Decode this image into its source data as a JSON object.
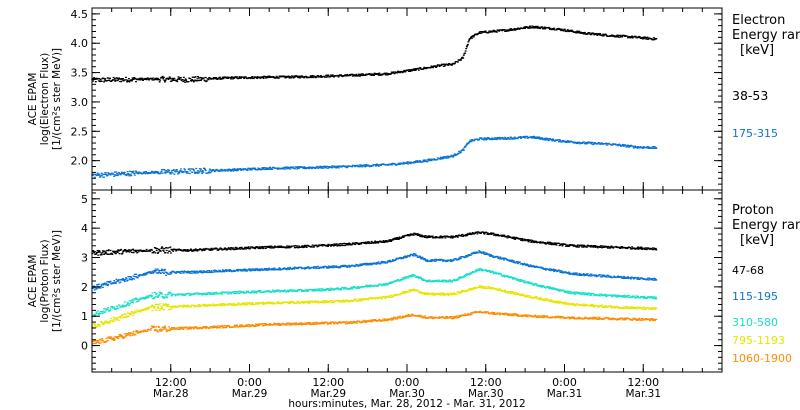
{
  "chart_data": {
    "type": "scatter",
    "x_axis": {
      "title": "hours:minutes, Mar. 28, 2012 - Mar. 31, 2012",
      "range_hours": [
        -15,
        81
      ],
      "ticks": [
        {
          "hour": -3,
          "time": "12:00",
          "date": "Mar.28"
        },
        {
          "hour": 9,
          "time": "0:00",
          "date": "Mar.29"
        },
        {
          "hour": 21,
          "time": "12:00",
          "date": "Mar.29"
        },
        {
          "hour": 33,
          "time": "0:00",
          "date": "Mar.30"
        },
        {
          "hour": 45,
          "time": "12:00",
          "date": "Mar.30"
        },
        {
          "hour": 57,
          "time": "0:00",
          "date": "Mar.31"
        },
        {
          "hour": 69,
          "time": "12:00",
          "date": "Mar.31"
        }
      ]
    },
    "panels": [
      {
        "ylabel": [
          "ACE EPAM",
          "log(Electron Flux)",
          "[1/(cm²s ster MeV)]"
        ],
        "ylim": [
          1.5,
          4.6
        ],
        "yticks": [
          "2.0",
          "2.5",
          "3.0",
          "3.5",
          "4.0",
          "4.5"
        ],
        "legend_title": [
          "Electron",
          "Energy ranges",
          "[keV]"
        ],
        "series": [
          {
            "name": "38-53",
            "color": "#000000",
            "x": [
              -15,
              -6,
              0,
              6,
              12,
              18,
              24,
              30,
              33,
              36,
              38,
              40,
              41.5,
              42.5,
              44,
              48,
              52,
              56,
              60,
              64,
              68,
              71
            ],
            "y": [
              3.37,
              3.39,
              3.38,
              3.41,
              3.42,
              3.43,
              3.45,
              3.48,
              3.53,
              3.58,
              3.62,
              3.64,
              3.75,
              4.08,
              4.18,
              4.22,
              4.28,
              4.24,
              4.17,
              4.13,
              4.1,
              4.07
            ]
          },
          {
            "name": "175-315",
            "color": "#0a74d6",
            "x": [
              -15,
              -6,
              0,
              6,
              12,
              18,
              24,
              30,
              33,
              36,
              38,
              40,
              41.5,
              42.5,
              44,
              48,
              52,
              56,
              60,
              64,
              68,
              71
            ],
            "y": [
              1.75,
              1.8,
              1.82,
              1.84,
              1.87,
              1.88,
              1.9,
              1.93,
              1.96,
              2.0,
              2.04,
              2.08,
              2.18,
              2.33,
              2.37,
              2.38,
              2.4,
              2.34,
              2.3,
              2.28,
              2.23,
              2.22
            ]
          }
        ]
      },
      {
        "ylabel": [
          "ACE EPAM",
          "log(Proton Flux)",
          "[1/(cm²s ster MeV)]"
        ],
        "ylim": [
          -0.9,
          5.3
        ],
        "yticks": [
          "0",
          "1",
          "2",
          "3",
          "4",
          "5"
        ],
        "legend_title": [
          "Proton",
          "Energy ranges",
          "[keV]"
        ],
        "series": [
          {
            "name": "47-68",
            "color": "#000000",
            "x": [
              -15,
              -6,
              0,
              6,
              12,
              18,
              24,
              30,
              34,
              36,
              40,
              44,
              46,
              52,
              58,
              64,
              71
            ],
            "y": [
              3.15,
              3.25,
              3.25,
              3.3,
              3.35,
              3.38,
              3.45,
              3.55,
              3.8,
              3.7,
              3.7,
              3.85,
              3.8,
              3.55,
              3.4,
              3.35,
              3.3
            ]
          },
          {
            "name": "115-195",
            "color": "#0a74d6",
            "x": [
              -15,
              -6,
              0,
              6,
              12,
              18,
              24,
              30,
              34,
              36,
              40,
              44,
              46,
              52,
              58,
              64,
              71
            ],
            "y": [
              1.95,
              2.5,
              2.5,
              2.55,
              2.6,
              2.65,
              2.7,
              2.85,
              3.1,
              2.9,
              2.9,
              3.2,
              3.05,
              2.7,
              2.45,
              2.35,
              2.25
            ]
          },
          {
            "name": "310-580",
            "color": "#19e0c8",
            "x": [
              -15,
              -6,
              0,
              6,
              12,
              18,
              24,
              30,
              34,
              36,
              40,
              44,
              46,
              52,
              58,
              64,
              71
            ],
            "y": [
              1.05,
              1.7,
              1.75,
              1.8,
              1.85,
              1.88,
              1.95,
              2.1,
              2.4,
              2.2,
              2.2,
              2.6,
              2.5,
              2.1,
              1.8,
              1.7,
              1.62
            ]
          },
          {
            "name": "795-1193",
            "color": "#e6e600",
            "x": [
              -15,
              -6,
              0,
              6,
              12,
              18,
              24,
              30,
              34,
              36,
              40,
              44,
              46,
              52,
              58,
              64,
              71
            ],
            "y": [
              0.65,
              1.3,
              1.35,
              1.4,
              1.45,
              1.48,
              1.52,
              1.65,
              1.9,
              1.75,
              1.75,
              2.0,
              1.95,
              1.65,
              1.4,
              1.32,
              1.25
            ]
          },
          {
            "name": "1060-1900",
            "color": "#ff8c00",
            "x": [
              -15,
              -6,
              0,
              6,
              12,
              18,
              24,
              30,
              34,
              36,
              40,
              44,
              46,
              52,
              58,
              64,
              71
            ],
            "y": [
              0.08,
              0.55,
              0.6,
              0.65,
              0.72,
              0.75,
              0.78,
              0.88,
              1.05,
              0.95,
              0.95,
              1.15,
              1.1,
              1.0,
              0.95,
              0.92,
              0.88
            ]
          }
        ]
      }
    ]
  }
}
